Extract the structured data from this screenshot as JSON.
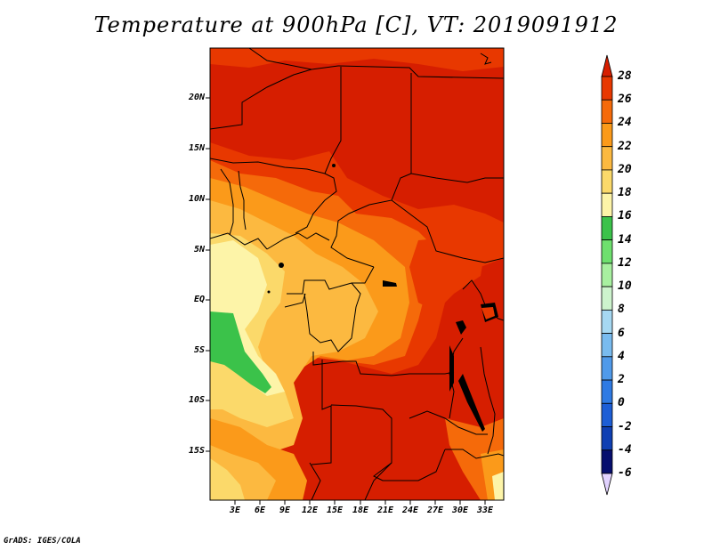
{
  "title": "Temperature at 900hPa [C], VT: 2019091912",
  "credit": "GrADS: IGES/COLA",
  "lat_labels": [
    "20N",
    "15N",
    "10N",
    "5N",
    "EQ",
    "5S",
    "10S",
    "15S"
  ],
  "lon_labels": [
    "3E",
    "6E",
    "9E",
    "12E",
    "15E",
    "18E",
    "21E",
    "24E",
    "27E",
    "30E",
    "33E"
  ],
  "colorbar": {
    "labels": [
      "28",
      "26",
      "24",
      "22",
      "20",
      "18",
      "16",
      "14",
      "12",
      "10",
      "8",
      "6",
      "4",
      "2",
      "0",
      "-2",
      "-4",
      "-6"
    ],
    "colors": [
      "#d61e00",
      "#e83800",
      "#f56a0a",
      "#fb9a1a",
      "#fcb940",
      "#fbd96a",
      "#fdf4a8",
      "#3bc24a",
      "#6ee06e",
      "#a8f0a0",
      "#cdf3cd",
      "#a6d8f2",
      "#79bbef",
      "#509aea",
      "#2f7ae3",
      "#1d5ed6",
      "#0f3fb3",
      "#060e6e",
      "#e1d2ff"
    ]
  },
  "field_colors": {
    "hot": "#d61e00",
    "warm": "#e83800",
    "orange": "#f56a0a",
    "amber": "#fb9a1a",
    "light_amber": "#fcb940",
    "pale": "#fbd96a",
    "cream": "#fdf4a8",
    "green": "#3bc24a",
    "light_green": "#6ee06e"
  }
}
